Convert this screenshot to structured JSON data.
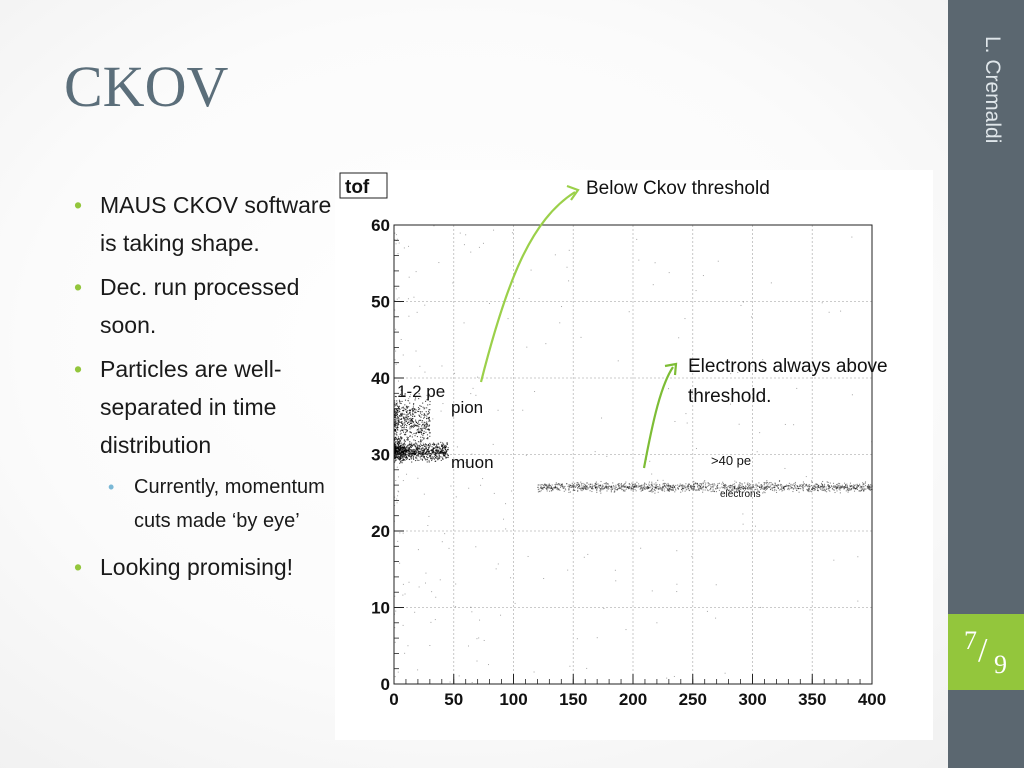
{
  "slide": {
    "title": "CKOV",
    "author": "L. Cremaldi",
    "page_current": "7",
    "page_total": "9"
  },
  "bullets": [
    {
      "text": "MAUS CKOV software is taking shape."
    },
    {
      "text": "Dec. run processed soon."
    },
    {
      "text": "Particles are well-separated in time distribution",
      "sub": [
        "Currently, momentum cuts made ‘by eye’"
      ]
    },
    {
      "text": "Looking promising!"
    }
  ],
  "annotations": {
    "below_threshold": "Below Ckov threshold",
    "electrons_always": "Electrons always above threshold.",
    "one_two_pe": "1-2 pe",
    "pion": "pion",
    "muon": "muon",
    "forty_pe": ">40 pe",
    "electrons": "electrons"
  },
  "colors": {
    "accent_green": "#93c63c",
    "sidebar": "#5b6770",
    "title": "#5b6e7a",
    "arrow": "#9bd04a"
  },
  "chart_data": {
    "type": "scatter",
    "title": "tof",
    "xlim": [
      0,
      400
    ],
    "ylim": [
      0,
      60
    ],
    "x_ticks": [
      0,
      50,
      100,
      150,
      200,
      250,
      300,
      350,
      400
    ],
    "y_ticks": [
      0,
      10,
      20,
      30,
      40,
      50,
      60
    ],
    "grid": true,
    "clusters": [
      {
        "name": "pion",
        "x_range": [
          0,
          30
        ],
        "y_center": 34.5,
        "y_spread": 1.5
      },
      {
        "name": "muon",
        "x_range": [
          0,
          45
        ],
        "y_center": 30.5,
        "y_spread": 0.6
      },
      {
        "name": "electrons",
        "x_range": [
          120,
          400
        ],
        "y_center": 25.8,
        "y_spread": 0.3
      }
    ]
  }
}
